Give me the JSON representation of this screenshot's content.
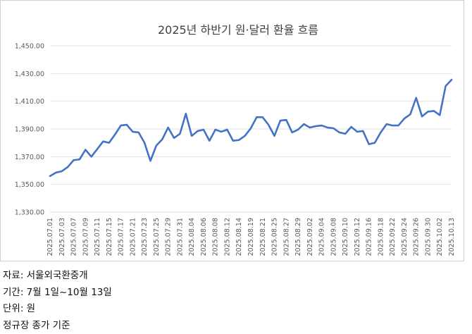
{
  "chart_data": {
    "type": "line",
    "title": "2025년 하반기 원·달러 환율 흐름",
    "xlabel": "",
    "ylabel": "",
    "ylim": [
      1330,
      1450
    ],
    "yticks": [
      1330,
      1350,
      1370,
      1390,
      1410,
      1430,
      1450
    ],
    "ytick_labels": [
      "1,330.00",
      "1,350.00",
      "1,370.00",
      "1,390.00",
      "1,410.00",
      "1,430.00",
      "1,450.00"
    ],
    "grid": true,
    "legend": "none",
    "series_color": "#4472C4",
    "x_tick_labels": [
      "2025.07.01",
      "2025.07.03",
      "2025.07.07",
      "2025.07.09",
      "2025.07.11",
      "2025.07.15",
      "2025.07.17",
      "2025.07.21",
      "2025.07.23",
      "2025.07.25",
      "2025.07.29",
      "2025.07.31",
      "2025.08.04",
      "2025.08.06",
      "2025.08.08",
      "2025.08.12",
      "2025.08.14",
      "2025.08.19",
      "2025.08.21",
      "2025.08.25",
      "2025.08.27",
      "2025.08.29",
      "2025.09.02",
      "2025.09.04",
      "2025.09.08",
      "2025.09.10",
      "2025.09.12",
      "2025.09.16",
      "2025.09.18",
      "2025.09.22",
      "2025.09.24",
      "2025.09.26",
      "2025.09.30",
      "2025.10.02",
      "2025.10.13"
    ],
    "series": [
      {
        "values": [
          1356,
          1358.5,
          1359.5,
          1362.5,
          1367.5,
          1368,
          1375,
          1370,
          1375.5,
          1381,
          1380,
          1386,
          1392.5,
          1393,
          1388,
          1387.5,
          1380,
          1367,
          1378,
          1382.5,
          1391,
          1383.5,
          1386.5,
          1401,
          1385,
          1388.5,
          1389.5,
          1381.5,
          1389.5,
          1388,
          1389.5,
          1381.5,
          1382,
          1385,
          1390.5,
          1398.5,
          1398.5,
          1393,
          1385,
          1396,
          1396.5,
          1387.5,
          1389.5,
          1393.5,
          1391,
          1392,
          1392.5,
          1391,
          1390.5,
          1387.5,
          1386.5,
          1391.5,
          1388,
          1388.5,
          1379,
          1380,
          1387.5,
          1393.5,
          1392.5,
          1392.5,
          1397.5,
          1400.5,
          1412.5,
          1399,
          1402.5,
          1403,
          1400,
          1421,
          1425.5
        ]
      }
    ]
  },
  "notes": {
    "source": "자료: 서울외국환중개",
    "period": "기간: 7월 1일~10월 13일",
    "unit": "단위: 원",
    "basis": "정규장 종가 기준"
  }
}
